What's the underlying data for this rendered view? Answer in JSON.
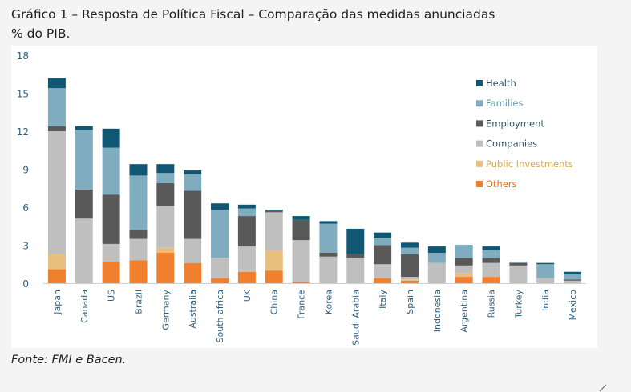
{
  "header": {
    "title": "Gráfico 1 – Resposta de Política Fiscal – Comparação das medidas anunciadas",
    "subtitle": "% do PIB."
  },
  "source_note": "Fonte: FMI e Bacen.",
  "colors": {
    "Others": "#f07f2e",
    "Public Investments": "#e8bf7d",
    "Companies": "#bfbfbf",
    "Employment": "#595959",
    "Families": "#7fadbf",
    "Health": "#0f5772"
  },
  "chart_data": {
    "type": "bar",
    "stacked": true,
    "title": "Gráfico 1 – Resposta de Política Fiscal – Comparação das medidas anunciadas",
    "subtitle": "% do PIB.",
    "xlabel": "",
    "ylabel": "",
    "ylim": [
      0,
      18
    ],
    "yticks": [
      0,
      3,
      6,
      9,
      12,
      15,
      18
    ],
    "grid": false,
    "legend_position": "right",
    "categories": [
      "Japan",
      "Canada",
      "US",
      "Brazil",
      "Germany",
      "Australia",
      "South africa",
      "UK",
      "China",
      "France",
      "Korea",
      "Saudi Arabia",
      "Italy",
      "Spain",
      "Indonesia",
      "Argentina",
      "Russia",
      "Turkey",
      "India",
      "Mexico"
    ],
    "series": [
      {
        "name": "Others",
        "values": [
          1.1,
          0,
          1.7,
          1.8,
          2.4,
          1.6,
          0.4,
          0.9,
          1.0,
          0.1,
          0,
          0,
          0.4,
          0.2,
          0,
          0.5,
          0.5,
          0,
          0,
          0
        ]
      },
      {
        "name": "Public Investments",
        "values": [
          1.2,
          0,
          0,
          0,
          0.4,
          0,
          0,
          0,
          1.6,
          0,
          0,
          0,
          0,
          0.1,
          0,
          0.3,
          0,
          0,
          0,
          0
        ]
      },
      {
        "name": "Companies",
        "values": [
          9.7,
          5.1,
          1.4,
          1.7,
          3.3,
          1.9,
          1.6,
          2.0,
          3.0,
          3.3,
          2.1,
          2.0,
          1.1,
          0.2,
          1.6,
          0.6,
          1.1,
          1.4,
          0.4,
          0.2
        ]
      },
      {
        "name": "Employment",
        "values": [
          0.4,
          2.3,
          3.9,
          0.7,
          1.8,
          3.8,
          0,
          2.4,
          0.1,
          1.6,
          0.3,
          0.3,
          1.5,
          1.8,
          0,
          0.6,
          0.4,
          0.2,
          0,
          0.1
        ]
      },
      {
        "name": "Families",
        "values": [
          3.0,
          4.7,
          3.7,
          4.3,
          0.8,
          1.3,
          3.8,
          0.6,
          0,
          0,
          2.3,
          0,
          0.6,
          0.5,
          0.8,
          0.9,
          0.6,
          0.1,
          1.1,
          0.4
        ]
      },
      {
        "name": "Health",
        "values": [
          0.8,
          0.3,
          1.5,
          0.9,
          0.7,
          0.3,
          0.5,
          0.3,
          0.1,
          0.3,
          0.2,
          2.0,
          0.4,
          0.4,
          0.5,
          0.1,
          0.3,
          0,
          0.1,
          0.2
        ]
      }
    ],
    "legend_order": [
      "Health",
      "Families",
      "Employment",
      "Companies",
      "Public Investments",
      "Others"
    ]
  }
}
